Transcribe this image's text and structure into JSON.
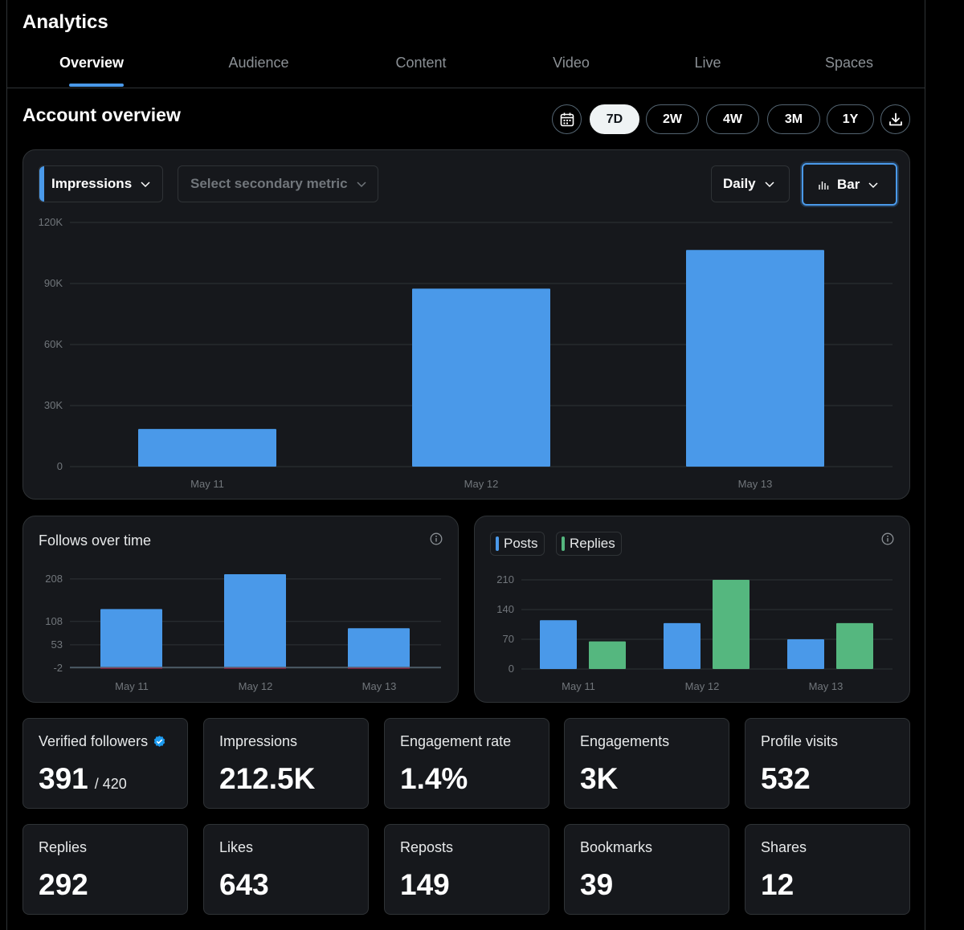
{
  "app": {
    "title": "Analytics"
  },
  "tabs": [
    {
      "label": "Overview",
      "active": true
    },
    {
      "label": "Audience"
    },
    {
      "label": "Content"
    },
    {
      "label": "Video"
    },
    {
      "label": "Live"
    },
    {
      "label": "Spaces"
    }
  ],
  "overview": {
    "title": "Account overview",
    "ranges": [
      {
        "label": "7D",
        "active": true
      },
      {
        "label": "2W"
      },
      {
        "label": "4W"
      },
      {
        "label": "3M"
      },
      {
        "label": "1Y"
      }
    ],
    "icons": {
      "calendar": "calendar-icon",
      "download": "download-icon"
    }
  },
  "main_chart": {
    "primary_metric": "Impressions",
    "secondary_placeholder": "Select secondary metric",
    "granularity": "Daily",
    "chart_type_label": "Bar"
  },
  "follows_card": {
    "title": "Follows over time"
  },
  "posts_card": {
    "legend": [
      "Posts",
      "Replies"
    ]
  },
  "colors": {
    "blue": "#4a99e9",
    "green": "#55b77f",
    "red": "#e0245e",
    "background": "#000000",
    "card": "#16181c"
  },
  "chart_data": [
    {
      "type": "bar",
      "categories": [
        "May 11",
        "May 12",
        "May 13"
      ],
      "series": [
        {
          "name": "Impressions",
          "values": [
            18500,
            87500,
            106500
          ]
        }
      ],
      "yticks": [
        "120K",
        "90K",
        "60K",
        "30K",
        "0"
      ],
      "ytick_values": [
        120000,
        90000,
        60000,
        30000,
        0
      ],
      "ylim": [
        0,
        120000
      ],
      "grid": true
    },
    {
      "type": "bar",
      "title": "Follows over time",
      "categories": [
        "May 11",
        "May 12",
        "May 13"
      ],
      "series": [
        {
          "values": [
            137,
            219,
            92
          ]
        },
        {
          "values": [
            -1,
            -2,
            -1
          ]
        }
      ],
      "yticks": [
        "208",
        "108",
        "53",
        "-2"
      ],
      "ytick_values": [
        208,
        108,
        53,
        -2
      ],
      "ylim": [
        -2,
        219
      ],
      "grid": true
    },
    {
      "type": "bar",
      "categories": [
        "May 11",
        "May 12",
        "May 13"
      ],
      "series": [
        {
          "name": "Posts",
          "values": [
            115,
            108,
            70
          ]
        },
        {
          "name": "Replies",
          "values": [
            65,
            210,
            108
          ]
        }
      ],
      "yticks": [
        "210",
        "140",
        "70",
        "0"
      ],
      "ytick_values": [
        210,
        140,
        70,
        0
      ],
      "ylim": [
        0,
        210
      ],
      "legend": "top-left",
      "grid": true
    }
  ],
  "stats": [
    {
      "label": "Verified followers",
      "value": "391",
      "sub": "/ 420",
      "badge": "verified-badge-icon"
    },
    {
      "label": "Impressions",
      "value": "212.5K"
    },
    {
      "label": "Engagement rate",
      "value": "1.4%"
    },
    {
      "label": "Engagements",
      "value": "3K"
    },
    {
      "label": "Profile visits",
      "value": "532"
    },
    {
      "label": "Replies",
      "value": "292"
    },
    {
      "label": "Likes",
      "value": "643"
    },
    {
      "label": "Reposts",
      "value": "149"
    },
    {
      "label": "Bookmarks",
      "value": "39"
    },
    {
      "label": "Shares",
      "value": "12"
    }
  ]
}
